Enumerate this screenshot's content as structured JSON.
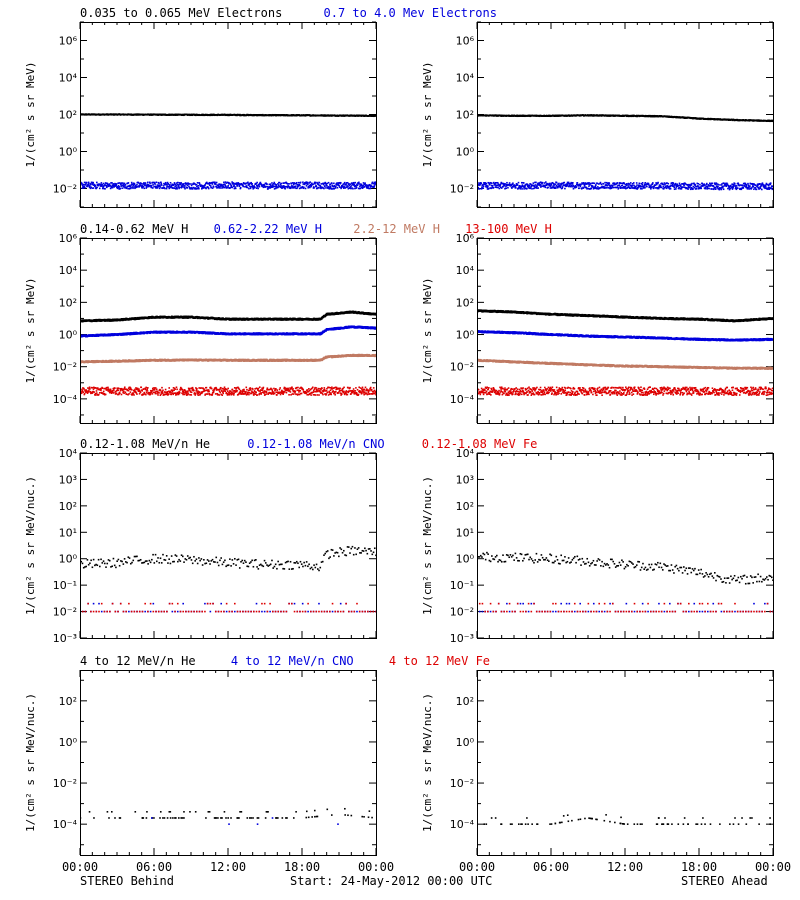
{
  "colors": {
    "black": "#000000",
    "blue": "#0000dd",
    "tan": "#c07a63",
    "red": "#dd0000"
  },
  "rows": [
    {
      "legend": [
        {
          "text": "0.035 to 0.065 MeV Electrons",
          "color": "#000000"
        },
        {
          "text": "0.7 to 4.0 Mev Electrons",
          "color": "#0000dd"
        }
      ],
      "ylabel": "1/(cm² s sr MeV)",
      "ylim_log10": [
        -3,
        7
      ],
      "tick_labels": [
        {
          "exp": 6,
          "text": "10⁶"
        },
        {
          "exp": 4,
          "text": "10⁴"
        },
        {
          "exp": 2,
          "text": "10²"
        },
        {
          "exp": 0,
          "text": "10⁰"
        },
        {
          "exp": -2,
          "text": "10⁻²"
        }
      ],
      "minor_ticks": true
    },
    {
      "legend": [
        {
          "text": "0.14-0.62 MeV H",
          "color": "#000000"
        },
        {
          "text": "0.62-2.22 MeV H",
          "color": "#0000dd"
        },
        {
          "text": "2.2-12 MeV H",
          "color": "#c07a63"
        },
        {
          "text": "13-100 MeV H",
          "color": "#dd0000"
        }
      ],
      "ylabel": "1/(cm² s sr MeV)",
      "ylim_log10": [
        -5.5,
        6
      ],
      "tick_labels": [
        {
          "exp": 6,
          "text": "10⁶"
        },
        {
          "exp": 4,
          "text": "10⁴"
        },
        {
          "exp": 2,
          "text": "10²"
        },
        {
          "exp": 0,
          "text": "10⁰"
        },
        {
          "exp": -2,
          "text": "10⁻²"
        },
        {
          "exp": -4,
          "text": "10⁻⁴"
        }
      ],
      "minor_ticks": true
    },
    {
      "legend": [
        {
          "text": "0.12-1.08 MeV/n He",
          "color": "#000000"
        },
        {
          "text": "0.12-1.08 MeV/n CNO",
          "color": "#0000dd"
        },
        {
          "text": "0.12-1.08 MeV Fe",
          "color": "#dd0000"
        }
      ],
      "ylabel": "1/(cm² s sr MeV/nuc.)",
      "ylim_log10": [
        -3,
        4
      ],
      "tick_labels": [
        {
          "exp": 4,
          "text": "10⁴"
        },
        {
          "exp": 3,
          "text": "10³"
        },
        {
          "exp": 2,
          "text": "10²"
        },
        {
          "exp": 1,
          "text": "10¹"
        },
        {
          "exp": 0,
          "text": "10⁰"
        },
        {
          "exp": -1,
          "text": "10⁻¹"
        },
        {
          "exp": -2,
          "text": "10⁻²"
        },
        {
          "exp": -3,
          "text": "10⁻³"
        }
      ],
      "minor_ticks": false
    },
    {
      "legend": [
        {
          "text": "4 to 12 MeV/n He",
          "color": "#000000"
        },
        {
          "text": "4 to 12 MeV/n CNO",
          "color": "#0000dd"
        },
        {
          "text": "4 to 12 MeV Fe",
          "color": "#dd0000"
        }
      ],
      "ylabel": "1/(cm² s sr MeV/nuc.)",
      "ylim_log10": [
        -5.5,
        3.5
      ],
      "tick_labels": [
        {
          "exp": 2,
          "text": "10²"
        },
        {
          "exp": 0,
          "text": "10⁰"
        },
        {
          "exp": -2,
          "text": "10⁻²"
        },
        {
          "exp": -4,
          "text": "10⁻⁴"
        }
      ],
      "minor_ticks": true
    }
  ],
  "x_ticks": [
    "00:00",
    "06:00",
    "12:00",
    "18:00",
    "00:00"
  ],
  "footer": {
    "left": "STEREO Behind",
    "center": "Start: 24-May-2012 00:00 UTC",
    "right": "STEREO Ahead"
  },
  "chart_data": [
    {
      "type": "scatter",
      "panel": "row1-behind",
      "x_unit": "hours since start",
      "xlim": [
        0,
        24
      ],
      "y_scale": "log",
      "series": [
        {
          "name": "0.035 to 0.065 MeV Electrons",
          "color": "#000000",
          "x": [
            0,
            3,
            6,
            9,
            12,
            15,
            18,
            21,
            24
          ],
          "y": [
            100,
            100,
            98,
            96,
            95,
            92,
            90,
            88,
            85
          ]
        },
        {
          "name": "0.7 to 4.0 Mev Electrons",
          "color": "#0000dd",
          "x": [
            0,
            3,
            6,
            9,
            12,
            15,
            18,
            21,
            24
          ],
          "y": [
            0.015,
            0.014,
            0.015,
            0.014,
            0.015,
            0.014,
            0.015,
            0.014,
            0.015
          ]
        }
      ]
    },
    {
      "type": "scatter",
      "panel": "row1-ahead",
      "x_unit": "hours since start",
      "xlim": [
        0,
        24
      ],
      "y_scale": "log",
      "series": [
        {
          "name": "0.035 to 0.065 MeV Electrons",
          "color": "#000000",
          "x": [
            0,
            3,
            6,
            9,
            12,
            15,
            18,
            21,
            24
          ],
          "y": [
            90,
            85,
            85,
            90,
            85,
            80,
            60,
            50,
            45
          ]
        },
        {
          "name": "0.7 to 4.0 Mev Electrons",
          "color": "#0000dd",
          "x": [
            0,
            3,
            6,
            9,
            12,
            15,
            18,
            21,
            24
          ],
          "y": [
            0.014,
            0.014,
            0.015,
            0.014,
            0.014,
            0.014,
            0.013,
            0.013,
            0.013
          ]
        }
      ]
    },
    {
      "type": "scatter",
      "panel": "row2-behind",
      "x_unit": "hours since start",
      "xlim": [
        0,
        24
      ],
      "y_scale": "log",
      "series": [
        {
          "name": "0.14-0.62 MeV H",
          "color": "#000000",
          "x": [
            0,
            3,
            6,
            9,
            12,
            15,
            18,
            19.5,
            20,
            22,
            24
          ],
          "y": [
            7,
            8,
            12,
            12,
            9,
            9,
            9,
            9,
            18,
            25,
            18
          ]
        },
        {
          "name": "0.62-2.22 MeV H",
          "color": "#0000dd",
          "x": [
            0,
            3,
            6,
            9,
            12,
            15,
            18,
            19.5,
            20,
            22,
            24
          ],
          "y": [
            0.8,
            1.0,
            1.4,
            1.4,
            1.1,
            1.1,
            1.1,
            1.1,
            2.0,
            3.0,
            2.5
          ]
        },
        {
          "name": "2.2-12 MeV H",
          "color": "#c07a63",
          "x": [
            0,
            3,
            6,
            9,
            12,
            15,
            18,
            19.5,
            20,
            22,
            24
          ],
          "y": [
            0.02,
            0.022,
            0.025,
            0.026,
            0.025,
            0.025,
            0.025,
            0.025,
            0.04,
            0.05,
            0.05
          ]
        },
        {
          "name": "13-100 MeV H",
          "color": "#dd0000",
          "x": [
            0,
            3,
            6,
            9,
            12,
            15,
            18,
            21,
            24
          ],
          "y": [
            0.0003,
            0.0003,
            0.0003,
            0.0003,
            0.0003,
            0.0003,
            0.0003,
            0.0003,
            0.0003
          ]
        }
      ]
    },
    {
      "type": "scatter",
      "panel": "row2-ahead",
      "x_unit": "hours since start",
      "xlim": [
        0,
        24
      ],
      "y_scale": "log",
      "series": [
        {
          "name": "0.14-0.62 MeV H",
          "color": "#000000",
          "x": [
            0,
            3,
            6,
            9,
            12,
            15,
            18,
            21,
            24
          ],
          "y": [
            30,
            25,
            18,
            15,
            12,
            10,
            9,
            7,
            10
          ]
        },
        {
          "name": "0.62-2.22 MeV H",
          "color": "#0000dd",
          "x": [
            0,
            3,
            6,
            9,
            12,
            15,
            18,
            21,
            24
          ],
          "y": [
            1.5,
            1.3,
            1.0,
            0.8,
            0.7,
            0.6,
            0.5,
            0.45,
            0.5
          ]
        },
        {
          "name": "2.2-12 MeV H",
          "color": "#c07a63",
          "x": [
            0,
            3,
            6,
            9,
            12,
            15,
            18,
            21,
            24
          ],
          "y": [
            0.025,
            0.02,
            0.016,
            0.013,
            0.011,
            0.01,
            0.009,
            0.008,
            0.008
          ]
        },
        {
          "name": "13-100 MeV H",
          "color": "#dd0000",
          "x": [
            0,
            3,
            6,
            9,
            12,
            15,
            18,
            21,
            24
          ],
          "y": [
            0.0003,
            0.0003,
            0.0003,
            0.0003,
            0.0003,
            0.0003,
            0.0003,
            0.0003,
            0.0003
          ]
        }
      ]
    },
    {
      "type": "scatter",
      "panel": "row3-behind",
      "x_unit": "hours since start",
      "xlim": [
        0,
        24
      ],
      "y_scale": "log",
      "series": [
        {
          "name": "0.12-1.08 MeV/n He",
          "color": "#000000",
          "x": [
            0,
            3,
            6,
            9,
            12,
            15,
            18,
            19.5,
            20,
            22,
            24
          ],
          "y": [
            0.6,
            0.7,
            1.0,
            0.9,
            0.7,
            0.6,
            0.6,
            0.5,
            1.5,
            2.0,
            1.8
          ]
        },
        {
          "name": "0.12-1.08 MeV/n CNO",
          "color": "#0000dd",
          "x": [
            0,
            3,
            6,
            9,
            12,
            15,
            18,
            21,
            24
          ],
          "y": [
            0.01,
            0.01,
            0.01,
            0.01,
            0.01,
            0.01,
            0.01,
            0.01,
            0.01
          ]
        },
        {
          "name": "0.12-1.08 MeV Fe",
          "color": "#dd0000",
          "x": [
            0,
            3,
            6,
            9,
            12,
            15,
            18,
            21,
            24
          ],
          "y": [
            0.01,
            0.01,
            0.01,
            0.01,
            0.01,
            0.01,
            0.01,
            0.01,
            0.01
          ]
        }
      ]
    },
    {
      "type": "scatter",
      "panel": "row3-ahead",
      "x_unit": "hours since start",
      "xlim": [
        0,
        24
      ],
      "y_scale": "log",
      "series": [
        {
          "name": "0.12-1.08 MeV/n He",
          "color": "#000000",
          "x": [
            0,
            3,
            6,
            9,
            12,
            15,
            18,
            21,
            24
          ],
          "y": [
            1.2,
            1.1,
            1.0,
            0.8,
            0.6,
            0.5,
            0.3,
            0.15,
            0.2
          ]
        },
        {
          "name": "0.12-1.08 MeV/n CNO",
          "color": "#0000dd",
          "x": [
            0,
            3,
            6,
            9,
            12,
            15,
            18,
            21,
            24
          ],
          "y": [
            0.01,
            0.01,
            0.01,
            0.01,
            0.01,
            0.01,
            0.01,
            0.01,
            0.01
          ]
        },
        {
          "name": "0.12-1.08 MeV Fe",
          "color": "#dd0000",
          "x": [
            0,
            3,
            6,
            9,
            12,
            15,
            18,
            21,
            24
          ],
          "y": [
            0.01,
            0.01,
            0.01,
            0.01,
            0.01,
            0.01,
            0.01,
            0.01,
            0.01
          ]
        }
      ]
    },
    {
      "type": "scatter",
      "panel": "row4-behind",
      "x_unit": "hours since start",
      "xlim": [
        0,
        24
      ],
      "y_scale": "log",
      "series": [
        {
          "name": "4 to 12 MeV/n He",
          "color": "#000000",
          "x": [
            0,
            3,
            6,
            9,
            12,
            15,
            18,
            21,
            24
          ],
          "y": [
            0.0002,
            0.0002,
            0.0002,
            0.0002,
            0.0002,
            0.0002,
            0.0002,
            0.0003,
            0.0002
          ]
        },
        {
          "name": "4 to 12 MeV/n CNO",
          "color": "#0000dd",
          "x": [
            0,
            24
          ],
          "y": [
            0.0001,
            0.0001
          ]
        }
      ]
    },
    {
      "type": "scatter",
      "panel": "row4-ahead",
      "x_unit": "hours since start",
      "xlim": [
        0,
        24
      ],
      "y_scale": "log",
      "series": [
        {
          "name": "4 to 12 MeV/n He",
          "color": "#000000",
          "x": [
            0,
            3,
            6,
            9,
            12,
            15,
            18,
            21,
            24
          ],
          "y": [
            0.0001,
            0.0001,
            0.0001,
            0.0002,
            0.0001,
            0.0001,
            0.0001,
            0.0001,
            0.0001
          ]
        }
      ]
    }
  ]
}
